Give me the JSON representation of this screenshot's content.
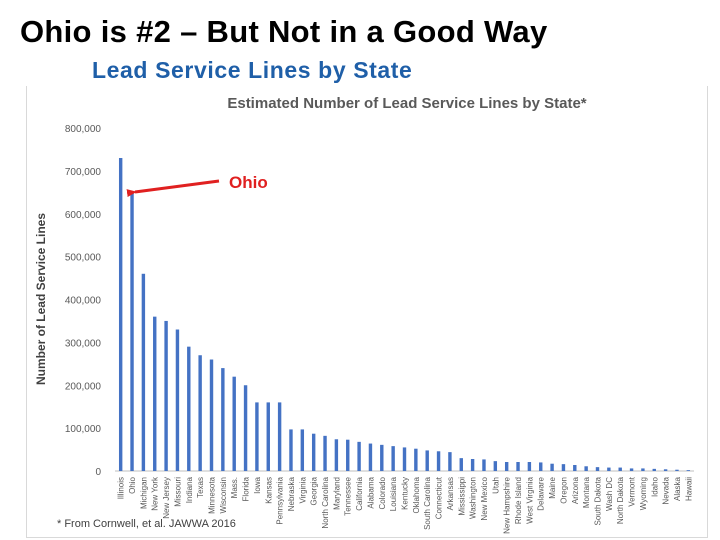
{
  "slide": {
    "title": "Ohio is #2 – But Not in a Good Way",
    "subtitle": "Lead Service Lines by State",
    "subtitle_color": "#1f5fa8"
  },
  "chart_data": {
    "type": "bar",
    "title": "Estimated Number of Lead Service Lines by State*",
    "xlabel": "",
    "ylabel": "Number of Lead Service Lines",
    "ylim": [
      0,
      800000
    ],
    "yticks": [
      "0",
      "100,000",
      "200,000",
      "300,000",
      "400,000",
      "500,000",
      "600,000",
      "700,000",
      "800,000"
    ],
    "grid": false,
    "bar_color": "#4472c4",
    "categories": [
      "Illinois",
      "Ohio",
      "Michigan",
      "New York",
      "New Jersey",
      "Missouri",
      "Indiana",
      "Texas",
      "Minnesota",
      "Wisconsin",
      "Mass.",
      "Florida",
      "Iowa",
      "Kansas",
      "Pennsylvania",
      "Nebraska",
      "Virginia",
      "Georgia",
      "North Carolina",
      "Maryland",
      "Tennessee",
      "California",
      "Alabama",
      "Colorado",
      "Louisiana",
      "Kentucky",
      "Oklahoma",
      "South Carolina",
      "Connecticut",
      "Arkansas",
      "Mississippi",
      "Washington",
      "New Mexico",
      "Utah",
      "New Hampshire",
      "Rhode Island",
      "West Virginia",
      "Delaware",
      "Maine",
      "Oregon",
      "Arizona",
      "Montana",
      "South Dakota",
      "Wash DC",
      "North Dakota",
      "Vermont",
      "Wyoming",
      "Idaho",
      "Nevada",
      "Alaska",
      "Hawaii"
    ],
    "values": [
      730000,
      650000,
      460000,
      360000,
      350000,
      330000,
      290000,
      270000,
      260000,
      240000,
      220000,
      200000,
      160000,
      160000,
      160000,
      97000,
      97000,
      87000,
      82000,
      74000,
      73000,
      68000,
      64000,
      61000,
      58000,
      55000,
      52000,
      48000,
      46000,
      44000,
      30000,
      28000,
      27000,
      23000,
      21000,
      21000,
      21000,
      20000,
      17000,
      16000,
      14000,
      11000,
      9000,
      8000,
      8000,
      6000,
      6000,
      5000,
      4000,
      3000,
      2000
    ],
    "annotation": {
      "text": "Ohio",
      "color": "#e02020",
      "target": "Ohio"
    },
    "footnote": "* From Cornwell, et al. JAWWA 2016"
  }
}
